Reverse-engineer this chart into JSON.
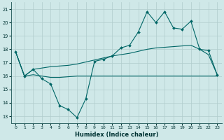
{
  "xlabel": "Humidex (Indice chaleur)",
  "background_color": "#cfe8e8",
  "grid_color": "#b0cccc",
  "line_color": "#006666",
  "xlim": [
    -0.5,
    23.5
  ],
  "ylim": [
    12.5,
    21.5
  ],
  "yticks": [
    13,
    14,
    15,
    16,
    17,
    18,
    19,
    20,
    21
  ],
  "xticks": [
    0,
    1,
    2,
    3,
    4,
    5,
    6,
    7,
    8,
    9,
    10,
    11,
    12,
    13,
    14,
    15,
    16,
    17,
    18,
    19,
    20,
    21,
    22,
    23
  ],
  "series1_x": [
    0,
    1,
    2,
    3,
    4,
    5,
    6,
    7,
    8,
    9,
    10,
    11,
    12,
    13,
    14,
    15,
    16,
    17,
    18,
    19,
    20,
    21,
    22,
    23
  ],
  "series1_y": [
    17.8,
    16.0,
    16.5,
    15.8,
    15.4,
    13.8,
    13.5,
    12.9,
    14.3,
    17.1,
    17.25,
    17.5,
    18.1,
    18.3,
    19.3,
    20.8,
    20.0,
    20.8,
    19.6,
    19.5,
    20.1,
    18.0,
    17.9,
    16.1
  ],
  "series2_x": [
    0,
    1,
    2,
    3,
    4,
    5,
    6,
    7,
    8,
    9,
    10,
    11,
    12,
    13,
    14,
    15,
    16,
    17,
    18,
    19,
    20,
    21,
    22,
    23
  ],
  "series2_y": [
    17.8,
    16.0,
    16.5,
    16.6,
    16.7,
    16.75,
    16.8,
    16.9,
    17.05,
    17.2,
    17.35,
    17.5,
    17.6,
    17.7,
    17.85,
    18.0,
    18.1,
    18.15,
    18.2,
    18.25,
    18.3,
    18.0,
    17.6,
    16.1
  ],
  "series3_x": [
    0,
    1,
    2,
    3,
    4,
    5,
    6,
    7,
    8,
    9,
    10,
    11,
    12,
    13,
    14,
    15,
    16,
    17,
    18,
    19,
    20,
    21,
    22,
    23
  ],
  "series3_y": [
    17.8,
    16.0,
    16.1,
    16.0,
    15.9,
    15.9,
    15.95,
    16.0,
    16.0,
    16.0,
    16.0,
    16.0,
    16.0,
    16.0,
    16.0,
    16.0,
    16.0,
    16.0,
    16.0,
    16.0,
    16.0,
    16.0,
    16.0,
    16.0
  ]
}
